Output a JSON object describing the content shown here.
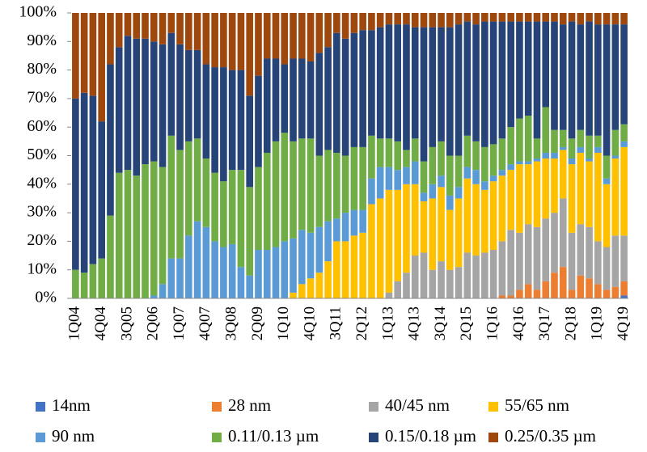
{
  "chart_data": {
    "type": "stacked_bar_100",
    "categories": [
      "1Q04",
      null,
      null,
      "4Q04",
      null,
      null,
      "3Q05",
      null,
      null,
      "2Q06",
      null,
      null,
      "1Q07",
      null,
      null,
      "4Q07",
      null,
      null,
      "3Q08",
      null,
      null,
      "2Q09",
      null,
      null,
      "1Q10",
      null,
      null,
      "4Q10",
      null,
      null,
      "3Q11",
      null,
      null,
      "2Q12",
      null,
      null,
      "1Q13",
      null,
      null,
      "4Q13",
      null,
      null,
      "3Q14",
      null,
      null,
      "2Q15",
      null,
      null,
      "1Q16",
      null,
      null,
      "4Q16",
      null,
      null,
      "3Q17",
      null,
      null,
      "2Q18",
      null,
      null,
      "1Q19",
      null,
      null,
      "4Q19"
    ],
    "series": [
      {
        "name": "14nm",
        "color": "#4472c4",
        "values": [
          0,
          0,
          0,
          0,
          0,
          0,
          0,
          0,
          0,
          0,
          0,
          0,
          0,
          0,
          0,
          0,
          0,
          0,
          0,
          0,
          0,
          0,
          0,
          0,
          0,
          0,
          0,
          0,
          0,
          0,
          0,
          0,
          0,
          0,
          0,
          0,
          0,
          0,
          0,
          0,
          0,
          0,
          0,
          0,
          0,
          0,
          0,
          0,
          0,
          0,
          0,
          0,
          0,
          0,
          0,
          0,
          0,
          0,
          0,
          0,
          0,
          0,
          0,
          1
        ]
      },
      {
        "name": "28 nm",
        "color": "#ed7d31",
        "values": [
          0,
          0,
          0,
          0,
          0,
          0,
          0,
          0,
          0,
          0,
          0,
          0,
          0,
          0,
          0,
          0,
          0,
          0,
          0,
          0,
          0,
          0,
          0,
          0,
          0,
          0,
          0,
          0,
          0,
          0,
          0,
          0,
          0,
          0,
          0,
          0,
          0,
          0,
          0,
          0,
          0,
          0,
          0,
          0,
          0,
          0,
          0,
          0,
          0,
          1,
          1,
          3,
          5,
          3,
          6,
          9,
          11,
          3,
          8,
          7,
          5,
          3,
          4,
          5
        ]
      },
      {
        "name": "40/45 nm",
        "color": "#a5a5a5",
        "values": [
          0,
          0,
          0,
          0,
          0,
          0,
          0,
          0,
          0,
          0,
          0,
          0,
          0,
          0,
          0,
          0,
          0,
          0,
          0,
          0,
          0,
          0,
          0,
          0,
          0,
          0,
          0,
          0,
          0,
          0,
          0,
          0,
          0,
          0,
          0,
          0,
          2,
          6,
          9,
          15,
          16,
          10,
          13,
          10,
          11,
          16,
          15,
          16,
          17,
          19,
          23,
          20,
          21,
          22,
          22,
          21,
          24,
          20,
          18,
          18,
          15,
          15,
          18,
          16
        ]
      },
      {
        "name": "55/65 nm",
        "color": "#ffc000",
        "values": [
          0,
          0,
          0,
          0,
          0,
          0,
          0,
          0,
          0,
          0,
          0,
          0,
          0,
          0,
          0,
          0,
          0,
          0,
          0,
          0,
          0,
          0,
          0,
          0,
          0,
          2,
          5,
          7,
          9,
          13,
          20,
          20,
          22,
          23,
          33,
          35,
          36,
          32,
          31,
          25,
          18,
          25,
          26,
          21,
          24,
          26,
          25,
          22,
          24,
          23,
          21,
          24,
          21,
          23,
          21,
          19,
          17,
          24,
          25,
          23,
          31,
          22,
          27,
          31
        ]
      },
      {
        "name": "90 nm",
        "color": "#5b9bd5",
        "values": [
          0,
          0,
          0,
          0,
          0,
          0,
          0,
          0,
          0,
          1,
          5,
          14,
          14,
          22,
          27,
          25,
          20,
          18,
          19,
          11,
          8,
          17,
          17,
          18,
          20,
          19,
          19,
          16,
          16,
          14,
          8,
          10,
          9,
          8,
          9,
          11,
          8,
          7,
          6,
          8,
          3,
          5,
          4,
          5,
          4,
          4,
          5,
          3,
          2,
          2,
          2,
          1,
          1,
          1,
          2,
          2,
          1,
          2,
          2,
          1,
          2,
          2,
          1,
          2
        ]
      },
      {
        "name": "0.11/0.13 µm",
        "color": "#70ad47",
        "values": [
          10,
          9,
          12,
          14,
          29,
          44,
          45,
          43,
          47,
          47,
          41,
          43,
          38,
          33,
          29,
          24,
          24,
          23,
          26,
          34,
          31,
          29,
          34,
          37,
          38,
          34,
          32,
          33,
          25,
          25,
          23,
          20,
          22,
          22,
          15,
          10,
          10,
          10,
          6,
          8,
          11,
          13,
          12,
          14,
          11,
          11,
          10,
          12,
          11,
          11,
          13,
          15,
          16,
          7,
          16,
          8,
          6,
          7,
          6,
          8,
          4,
          8,
          9,
          6
        ]
      },
      {
        "name": "0.15/0.18 µm",
        "color": "#264478",
        "values": [
          60,
          63,
          59,
          48,
          53,
          44,
          47,
          48,
          44,
          42,
          43,
          36,
          37,
          32,
          31,
          33,
          37,
          40,
          35,
          35,
          32,
          32,
          33,
          29,
          24,
          29,
          28,
          27,
          36,
          36,
          42,
          41,
          40,
          41,
          37,
          39,
          40,
          41,
          44,
          39,
          47,
          42,
          40,
          45,
          46,
          40,
          41,
          44,
          43,
          41,
          37,
          34,
          33,
          41,
          30,
          38,
          37,
          41,
          37,
          40,
          39,
          46,
          37,
          35
        ]
      },
      {
        "name": "0.25/0.35 µm",
        "color": "#9e480e",
        "values": [
          30,
          28,
          29,
          38,
          18,
          12,
          8,
          9,
          9,
          10,
          11,
          7,
          11,
          13,
          13,
          18,
          19,
          19,
          20,
          20,
          29,
          22,
          16,
          16,
          18,
          16,
          16,
          17,
          14,
          12,
          7,
          9,
          7,
          6,
          6,
          5,
          4,
          4,
          4,
          5,
          5,
          5,
          5,
          5,
          4,
          3,
          4,
          3,
          3,
          3,
          3,
          3,
          3,
          3,
          3,
          3,
          4,
          3,
          4,
          3,
          4,
          4,
          4,
          4
        ]
      }
    ],
    "ylim": [
      0,
      100
    ],
    "yticks": [
      {
        "value": 0,
        "label": "0%"
      },
      {
        "value": 10,
        "label": "10%"
      },
      {
        "value": 20,
        "label": "20%"
      },
      {
        "value": 30,
        "label": "30%"
      },
      {
        "value": 40,
        "label": "40%"
      },
      {
        "value": 50,
        "label": "50%"
      },
      {
        "value": 60,
        "label": "60%"
      },
      {
        "value": 70,
        "label": "70%"
      },
      {
        "value": 80,
        "label": "80%"
      },
      {
        "value": 90,
        "label": "90%"
      },
      {
        "value": 100,
        "label": "100%"
      }
    ],
    "legend": "bottom"
  }
}
